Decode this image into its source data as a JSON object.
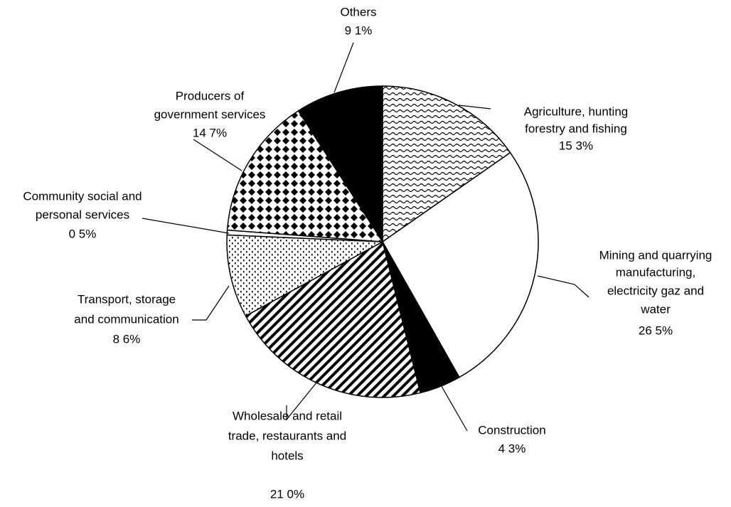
{
  "chart_data": {
    "type": "pie",
    "categories": [
      [
        "Agriculture, hunting",
        "forestry and fishing"
      ],
      [
        "Mining and quarrying",
        "manufacturing,",
        "electricity gaz and",
        "water"
      ],
      [
        "Construction"
      ],
      [
        "Wholesale and retail",
        "trade, restaurants and",
        "hotels"
      ],
      [
        "Transport, storage",
        "and communication"
      ],
      [
        "Community social and",
        "personal services"
      ],
      [
        "Producers of",
        "government services"
      ],
      [
        "Others"
      ]
    ],
    "values": [
      15.3,
      26.5,
      4.3,
      21.0,
      8.6,
      0.5,
      14.7,
      9.1
    ],
    "value_labels": [
      "15 3%",
      "26 5%",
      "4 3%",
      "21 0%",
      "8 6%",
      "0 5%",
      "14 7%",
      "9 1%"
    ]
  }
}
